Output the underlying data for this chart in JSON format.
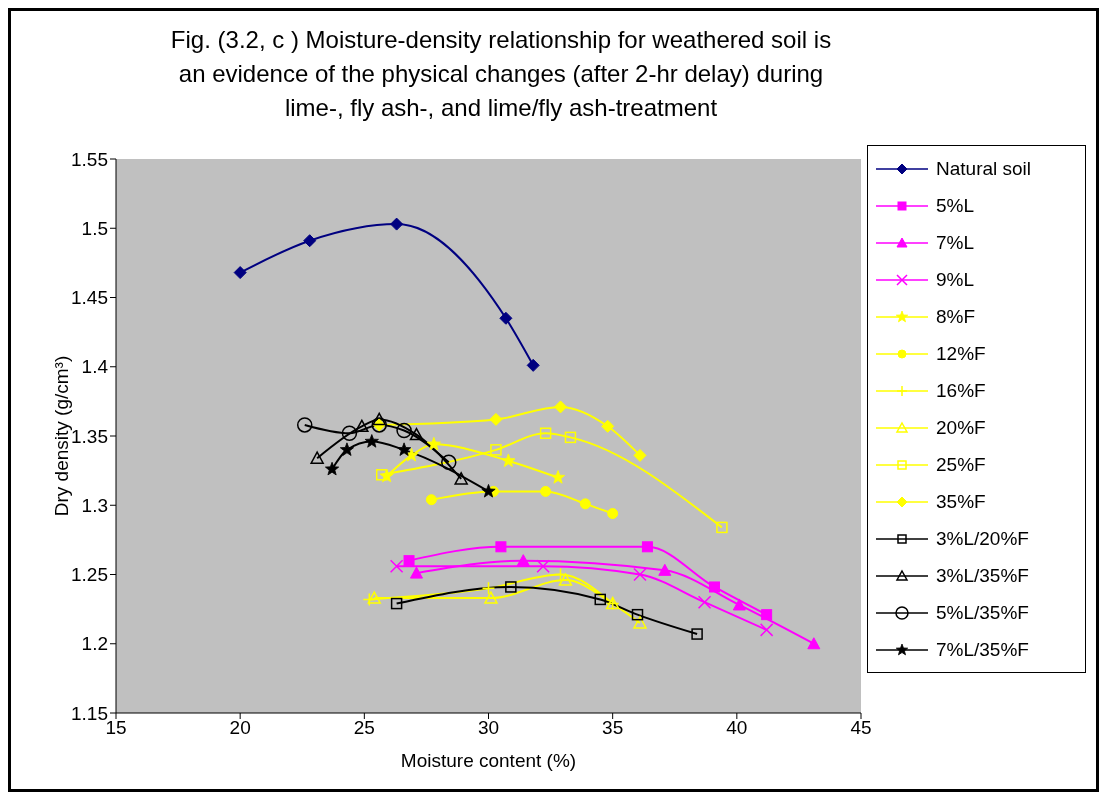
{
  "chart_data": {
    "type": "line",
    "title": "Fig. (3.2, c ) Moisture-density relationship for weathered soil is an evidence of the physical changes (after 2-hr delay) during lime-, fly ash-, and lime/fly ash-treatment",
    "xlabel": "Moisture content (%)",
    "ylabel": "Dry density (g/cm³)",
    "xlim": [
      15,
      45
    ],
    "xticks": [
      15,
      20,
      25,
      30,
      35,
      40,
      45
    ],
    "ylim": [
      1.15,
      1.55
    ],
    "yticks": [
      1.15,
      1.2,
      1.25,
      1.3,
      1.35,
      1.4,
      1.45,
      1.5,
      1.55
    ],
    "legend": "right",
    "series": [
      {
        "name": "Natural soil",
        "color": "#000080",
        "marker": "diamond",
        "x": [
          20,
          22.8,
          26.3,
          30.7,
          31.8
        ],
        "values": [
          1.468,
          1.491,
          1.503,
          1.435,
          1.401
        ]
      },
      {
        "name": "5%L",
        "color": "#ff00ff",
        "marker": "square",
        "x": [
          26.8,
          30.5,
          36.4,
          39.1,
          41.2
        ],
        "values": [
          1.26,
          1.27,
          1.27,
          1.241,
          1.221
        ]
      },
      {
        "name": "7%L",
        "color": "#ff00ff",
        "marker": "triangle",
        "x": [
          27.1,
          31.4,
          37.1,
          40.1,
          43.1
        ],
        "values": [
          1.251,
          1.26,
          1.253,
          1.228,
          1.2
        ]
      },
      {
        "name": "9%L",
        "color": "#ff00ff",
        "marker": "cross",
        "x": [
          26.3,
          32.2,
          36.1,
          38.7,
          41.2
        ],
        "values": [
          1.256,
          1.256,
          1.25,
          1.23,
          1.21
        ]
      },
      {
        "name": "8%F",
        "color": "#ffff00",
        "marker": "star",
        "x": [
          25.9,
          26.9,
          27.8,
          30.8,
          32.8
        ],
        "values": [
          1.321,
          1.336,
          1.344,
          1.332,
          1.32
        ]
      },
      {
        "name": "12%F",
        "color": "#ffff00",
        "marker": "circle",
        "x": [
          27.7,
          30.2,
          32.3,
          33.9,
          35
        ],
        "values": [
          1.304,
          1.31,
          1.31,
          1.301,
          1.294
        ]
      },
      {
        "name": "16%F",
        "color": "#ffff00",
        "marker": "plus",
        "x": [
          25.2,
          30,
          32.9,
          35
        ],
        "values": [
          1.232,
          1.24,
          1.25,
          1.229
        ]
      },
      {
        "name": "20%F",
        "color": "#ffff00",
        "marker": "triangle-open",
        "x": [
          25.4,
          30.1,
          33.1,
          35,
          36.1
        ],
        "values": [
          1.233,
          1.233,
          1.246,
          1.229,
          1.215
        ]
      },
      {
        "name": "25%F",
        "color": "#ffff00",
        "marker": "square-open",
        "x": [
          25.7,
          30.3,
          32.3,
          33.3,
          39.4
        ],
        "values": [
          1.322,
          1.34,
          1.352,
          1.349,
          1.284
        ]
      },
      {
        "name": "35%F",
        "color": "#ffff00",
        "marker": "diamond",
        "x": [
          25.6,
          30.3,
          32.9,
          34.8,
          36.1
        ],
        "values": [
          1.358,
          1.362,
          1.371,
          1.357,
          1.336
        ]
      },
      {
        "name": "3%L/20%F",
        "color": "#000000",
        "marker": "square-open",
        "x": [
          26.3,
          30.9,
          34.5,
          36,
          38.4
        ],
        "values": [
          1.229,
          1.241,
          1.232,
          1.221,
          1.207
        ]
      },
      {
        "name": "3%L/35%F",
        "color": "#000000",
        "marker": "triangle-open",
        "x": [
          23.1,
          24.9,
          25.6,
          27.1,
          28.9
        ],
        "values": [
          1.334,
          1.357,
          1.362,
          1.351,
          1.319
        ]
      },
      {
        "name": "5%L/35%F",
        "color": "#000000",
        "marker": "circle-open",
        "x": [
          22.6,
          24.4,
          25.6,
          26.6,
          28.4
        ],
        "values": [
          1.358,
          1.352,
          1.358,
          1.354,
          1.331
        ]
      },
      {
        "name": "7%L/35%F",
        "color": "#000000",
        "marker": "star",
        "x": [
          23.7,
          24.3,
          25.3,
          26.6,
          30
        ],
        "values": [
          1.326,
          1.34,
          1.346,
          1.34,
          1.31
        ]
      }
    ]
  }
}
